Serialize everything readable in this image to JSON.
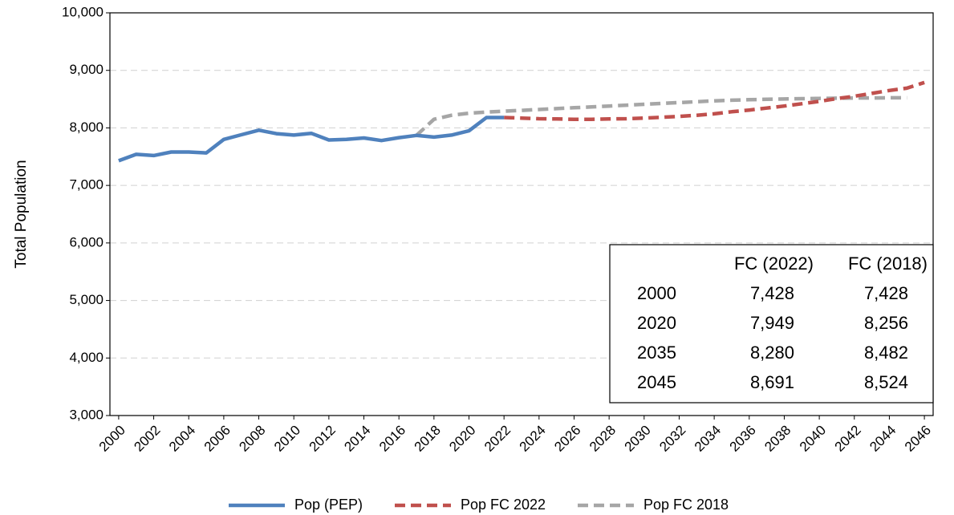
{
  "chart_data": {
    "type": "line",
    "ylabel": "Total Population",
    "x": [
      2000,
      2001,
      2002,
      2003,
      2004,
      2005,
      2006,
      2007,
      2008,
      2009,
      2010,
      2011,
      2012,
      2013,
      2014,
      2015,
      2016,
      2017,
      2018,
      2019,
      2020,
      2021,
      2022,
      2023,
      2024,
      2025,
      2026,
      2027,
      2028,
      2029,
      2030,
      2031,
      2032,
      2033,
      2034,
      2035,
      2036,
      2037,
      2038,
      2039,
      2040,
      2041,
      2042,
      2043,
      2044,
      2045,
      2046
    ],
    "xlim": [
      1999.5,
      2046.5
    ],
    "xticks": [
      2000,
      2002,
      2004,
      2006,
      2008,
      2010,
      2012,
      2014,
      2016,
      2018,
      2020,
      2022,
      2024,
      2026,
      2028,
      2030,
      2032,
      2034,
      2036,
      2038,
      2040,
      2042,
      2044,
      2046
    ],
    "ylim": [
      3000,
      10000
    ],
    "yticks": [
      {
        "value": 3000,
        "label": "3,000"
      },
      {
        "value": 4000,
        "label": "4,000"
      },
      {
        "value": 5000,
        "label": "5,000"
      },
      {
        "value": 6000,
        "label": "6,000"
      },
      {
        "value": 7000,
        "label": "7,000"
      },
      {
        "value": 8000,
        "label": "8,000"
      },
      {
        "value": 9000,
        "label": "9,000"
      },
      {
        "value": 10000,
        "label": "10,000"
      }
    ],
    "grid": true,
    "legend": "bottom",
    "series": [
      {
        "name": "Pop (PEP)",
        "color": "#4f81bd",
        "dashed": false,
        "values": [
          7428,
          7540,
          7520,
          7580,
          7580,
          7565,
          7800,
          7880,
          7960,
          7900,
          7875,
          7905,
          7790,
          7800,
          7825,
          7780,
          7830,
          7870,
          7840,
          7875,
          7949,
          8180,
          8180,
          null,
          null,
          null,
          null,
          null,
          null,
          null,
          null,
          null,
          null,
          null,
          null,
          null,
          null,
          null,
          null,
          null,
          null,
          null,
          null,
          null,
          null,
          null,
          null
        ]
      },
      {
        "name": "Pop FC 2022",
        "color": "#c0504d",
        "dashed": true,
        "values": [
          null,
          null,
          null,
          null,
          null,
          null,
          null,
          null,
          null,
          null,
          null,
          null,
          null,
          null,
          null,
          null,
          null,
          null,
          null,
          null,
          null,
          null,
          8180,
          8170,
          8160,
          8155,
          8150,
          8150,
          8155,
          8160,
          8170,
          8185,
          8200,
          8220,
          8245,
          8280,
          8310,
          8345,
          8380,
          8420,
          8460,
          8510,
          8550,
          8600,
          8650,
          8691,
          8790
        ]
      },
      {
        "name": "Pop FC 2018",
        "color": "#a6a6a6",
        "dashed": true,
        "values": [
          null,
          null,
          null,
          null,
          null,
          null,
          null,
          null,
          null,
          null,
          null,
          null,
          null,
          null,
          null,
          null,
          null,
          7870,
          8150,
          8220,
          8256,
          8275,
          8290,
          8305,
          8320,
          8335,
          8350,
          8365,
          8380,
          8395,
          8410,
          8425,
          8440,
          8455,
          8470,
          8482,
          8490,
          8497,
          8503,
          8508,
          8512,
          8516,
          8519,
          8521,
          8523,
          8524,
          null
        ]
      }
    ],
    "table": {
      "columns": [
        "FC (2022)",
        "FC (2018)"
      ],
      "rows": [
        {
          "label": "2000",
          "cells": [
            "7,428",
            "7,428"
          ]
        },
        {
          "label": "2020",
          "cells": [
            "7,949",
            "8,256"
          ]
        },
        {
          "label": "2035",
          "cells": [
            "8,280",
            "8,482"
          ]
        },
        {
          "label": "2045",
          "cells": [
            "8,691",
            "8,524"
          ]
        }
      ]
    }
  }
}
